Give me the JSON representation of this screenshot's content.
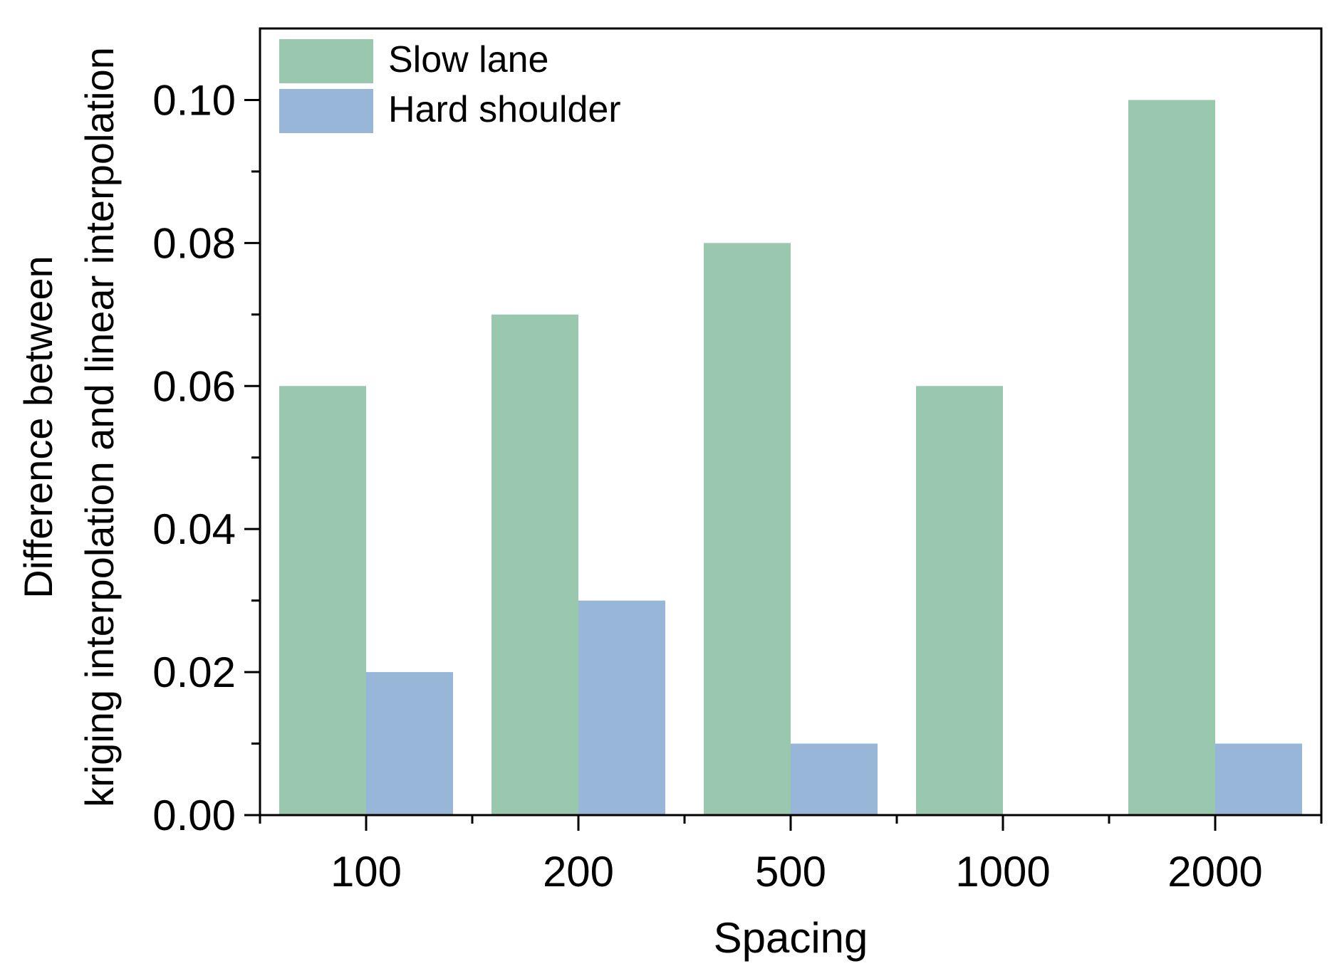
{
  "chart_data": {
    "type": "bar",
    "title": "",
    "xlabel": "Spacing",
    "ylabel_lines": [
      "Difference between",
      "kriging interpolation and linear interpolation"
    ],
    "categories": [
      "100",
      "200",
      "500",
      "1000",
      "2000"
    ],
    "series": [
      {
        "name": "Slow lane",
        "color": "#99c8af",
        "values": [
          0.06,
          0.07,
          0.08,
          0.06,
          0.1
        ]
      },
      {
        "name": "Hard shoulder",
        "color": "#97b6d8",
        "values": [
          0.02,
          0.03,
          0.01,
          0.0,
          0.01
        ]
      }
    ],
    "ylim": [
      0,
      0.11
    ],
    "yticks": [
      0.0,
      0.02,
      0.04,
      0.06,
      0.08,
      0.1
    ],
    "ytick_labels": [
      "0.00",
      "0.02",
      "0.04",
      "0.06",
      "0.08",
      "0.10"
    ],
    "grid": false,
    "legend_position": "top-left"
  }
}
